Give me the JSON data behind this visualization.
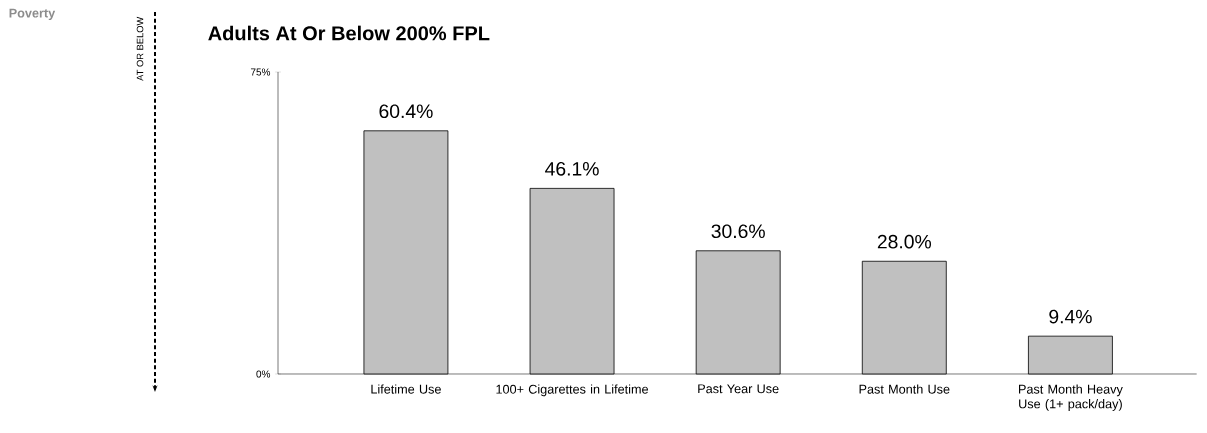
{
  "chart_data": {
    "type": "bar",
    "title": "Adults At Or Below 200% FPL",
    "categories": [
      "Lifetime Use",
      "100+ Cigarettes in Lifetime",
      "Past Year Use",
      "Past Month Use",
      "Past Month Heavy Use (1+ pack/day)"
    ],
    "values": [
      60.4,
      46.1,
      30.6,
      28.0,
      9.4
    ],
    "value_labels": [
      "60.4%",
      "46.1%",
      "30.6%",
      "28.0%",
      "9.4%"
    ],
    "color": "#c0c0c0",
    "ylim": [
      0,
      75
    ],
    "yticks": [
      {
        "value": 0,
        "label": "0%"
      },
      {
        "value": 75,
        "label": "75%"
      }
    ],
    "annotations": [
      "Poverty",
      "AT OR BELOW"
    ],
    "grid": false
  }
}
